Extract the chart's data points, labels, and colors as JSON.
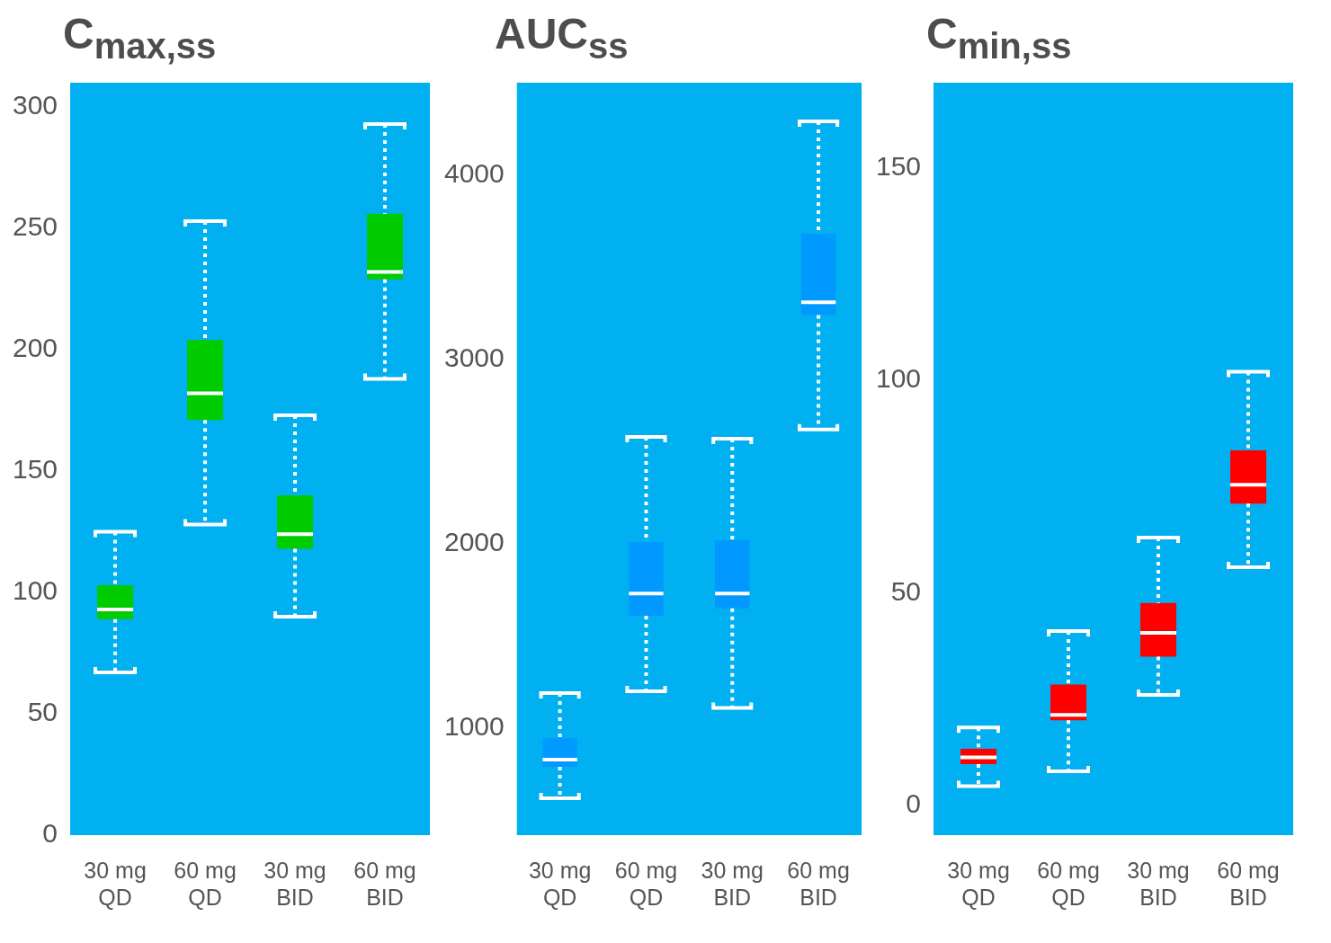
{
  "chart_data": [
    {
      "type": "box",
      "title": "C$_{max,ss}$",
      "categories": [
        "30 mg\nQD",
        "60 mg\nQD",
        "30 mg\nBID",
        "60 mg\nBID"
      ],
      "color": "#00cc00",
      "ylim": [
        0,
        310
      ],
      "yticks": [
        0,
        50,
        100,
        150,
        200,
        250,
        300
      ],
      "boxes": [
        {
          "low": 67,
          "q1": 89,
          "median": 93,
          "q3": 103,
          "high": 125
        },
        {
          "low": 128,
          "q1": 171,
          "median": 182,
          "q3": 204,
          "high": 253
        },
        {
          "low": 90,
          "q1": 118,
          "median": 124,
          "q3": 140,
          "high": 173
        },
        {
          "low": 188,
          "q1": 229,
          "median": 232,
          "q3": 256,
          "high": 293
        }
      ]
    },
    {
      "type": "box",
      "title": "AUC$_{ss}$",
      "categories": [
        "30 mg\nQD",
        "60 mg\nQD",
        "30 mg\nBID",
        "60 mg\nBID"
      ],
      "color": "#0099ff",
      "ylim": [
        420,
        4500
      ],
      "yticks": [
        1000,
        2000,
        3000,
        4000
      ],
      "boxes": [
        {
          "low": 620,
          "q1": 790,
          "median": 830,
          "q3": 945,
          "high": 1190
        },
        {
          "low": 1200,
          "q1": 1610,
          "median": 1730,
          "q3": 2010,
          "high": 2580
        },
        {
          "low": 1110,
          "q1": 1650,
          "median": 1730,
          "q3": 2020,
          "high": 2570
        },
        {
          "low": 2620,
          "q1": 3240,
          "median": 3310,
          "q3": 3680,
          "high": 4290
        }
      ]
    },
    {
      "type": "box",
      "title": "C$_{min,ss}$",
      "categories": [
        "30 mg\nQD",
        "60 mg\nQD",
        "30 mg\nBID",
        "60 mg\nBID"
      ],
      "color": "#ff0000",
      "ylim": [
        -7,
        170
      ],
      "yticks": [
        0,
        50,
        100,
        150
      ],
      "boxes": [
        {
          "low": 4.5,
          "q1": 9.7,
          "median": 11.3,
          "q3": 13.3,
          "high": 18.3
        },
        {
          "low": 8,
          "q1": 20,
          "median": 21.3,
          "q3": 28.4,
          "high": 41
        },
        {
          "low": 26,
          "q1": 35,
          "median": 40.6,
          "q3": 47.6,
          "high": 63
        },
        {
          "low": 56,
          "q1": 71,
          "median": 75.4,
          "q3": 83.5,
          "high": 102
        }
      ]
    }
  ]
}
